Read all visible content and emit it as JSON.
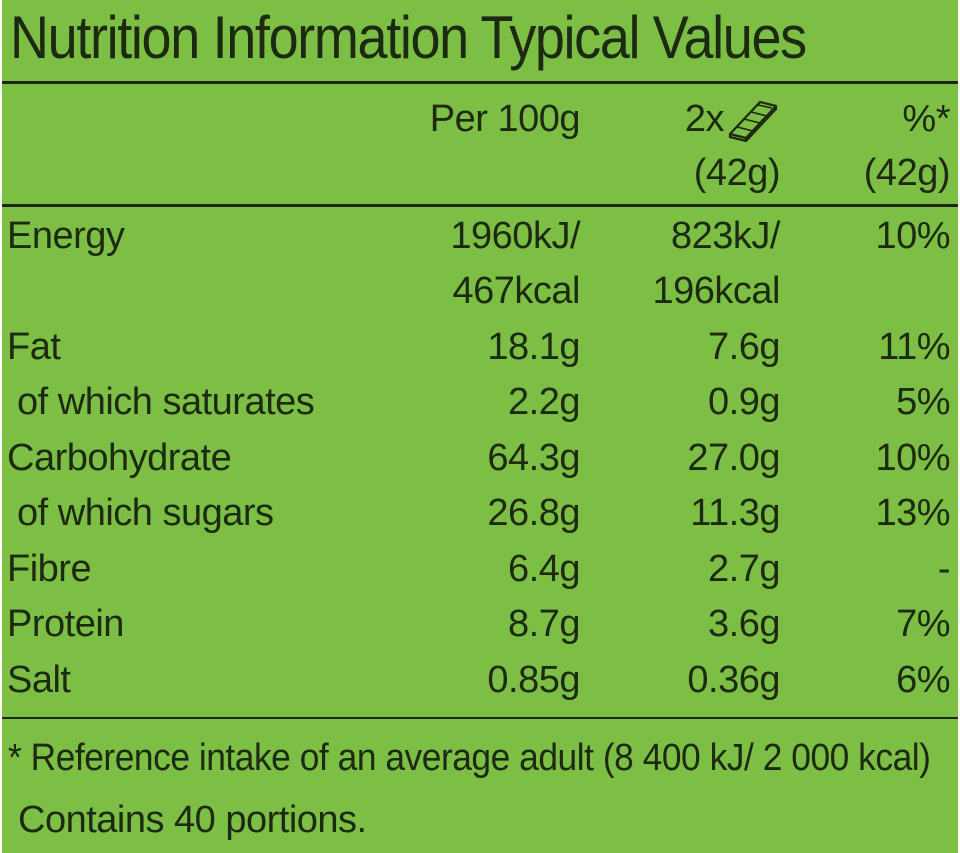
{
  "title": "Nutrition Information Typical Values",
  "header": {
    "per100": "Per 100g",
    "serving_count": "2x",
    "serving_icon": "chocolate-bar-icon",
    "serving_weight": "(42g)",
    "ri_label": "%*",
    "ri_weight": "(42g)"
  },
  "rows": [
    {
      "label": "Energy",
      "per100_line1": "1960kJ/",
      "per100_line2": "467kcal",
      "serving_line1": "823kJ/",
      "serving_line2": "196kcal",
      "ri": "10%"
    },
    {
      "label": "Fat",
      "per100": "18.1g",
      "serving": "7.6g",
      "ri": "11%"
    },
    {
      "label": "of which saturates",
      "per100": "2.2g",
      "serving": "0.9g",
      "ri": "5%"
    },
    {
      "label": "Carbohydrate",
      "per100": "64.3g",
      "serving": "27.0g",
      "ri": "10%"
    },
    {
      "label": "of which sugars",
      "per100": "26.8g",
      "serving": "11.3g",
      "ri": "13%"
    },
    {
      "label": "Fibre",
      "per100": "6.4g",
      "serving": "2.7g",
      "ri": "-"
    },
    {
      "label": "Protein",
      "per100": "8.7g",
      "serving": "3.6g",
      "ri": "7%"
    },
    {
      "label": "Salt",
      "per100": "0.85g",
      "serving": "0.36g",
      "ri": "6%"
    }
  ],
  "footnote": {
    "line1": "* Reference intake of an average adult (8 400 kJ/ 2 000 kcal)",
    "line2": "Contains 40 portions."
  },
  "colors": {
    "background": "#7dbe45",
    "text": "#1c2a12"
  }
}
